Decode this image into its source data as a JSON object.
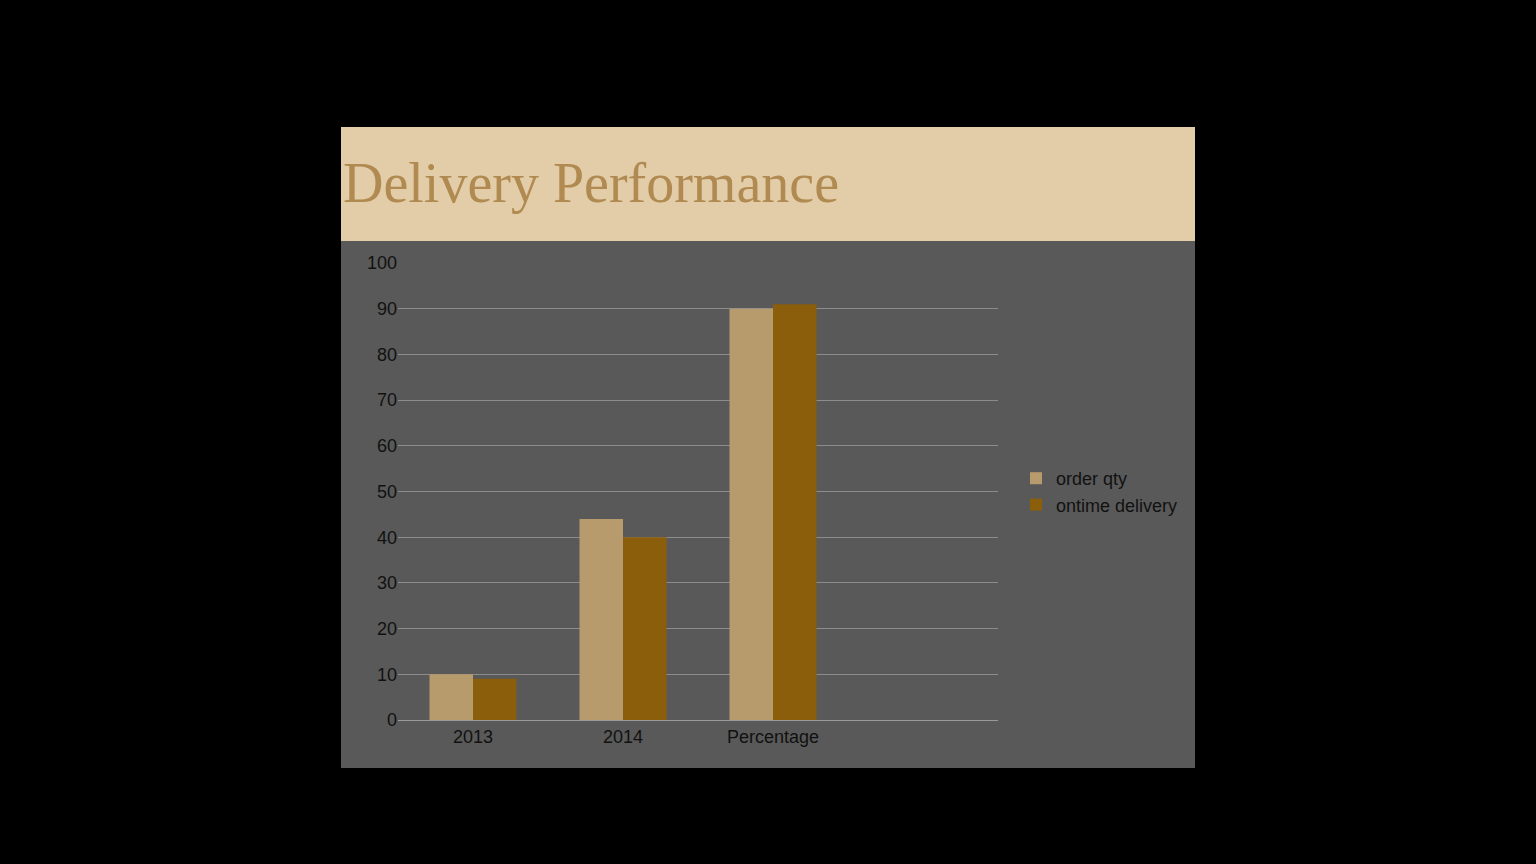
{
  "chart_data": {
    "type": "bar",
    "title": "Delivery Performance",
    "categories": [
      "2013",
      "2014",
      "Percentage",
      null
    ],
    "series": [
      {
        "name": "order qty",
        "color": "#b89b6c",
        "values": [
          10,
          44,
          90,
          null
        ]
      },
      {
        "name": "ontime delivery",
        "color": "#8b5e0c",
        "values": [
          9,
          40,
          91,
          null
        ]
      }
    ],
    "ylim": [
      0,
      100
    ],
    "yticks": [
      0,
      10,
      20,
      30,
      40,
      50,
      60,
      70,
      80,
      90,
      100
    ],
    "grid": true,
    "legend": "right"
  }
}
